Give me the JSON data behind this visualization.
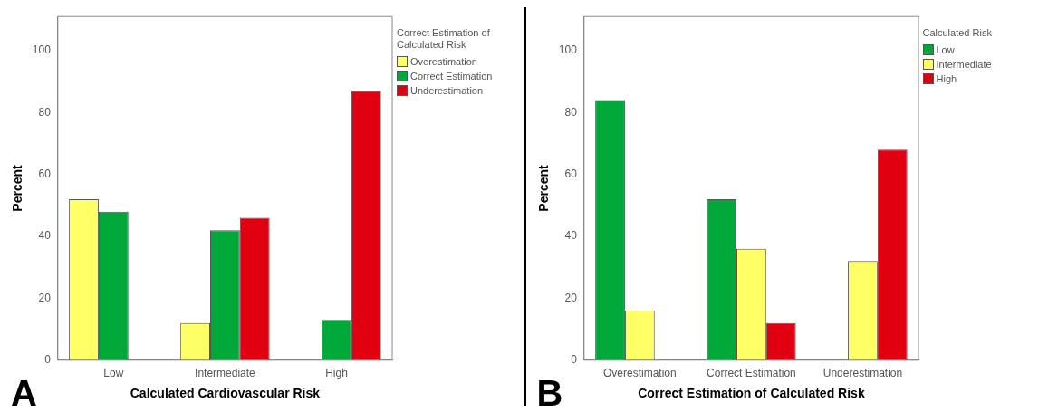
{
  "chart_data": [
    {
      "type": "bar",
      "xlabel": "Calculated Cardiovascular Risk",
      "ylabel": "Percent",
      "legend_title": "Correct Estimation of Calculated Risk",
      "annotations": [
        "A"
      ],
      "categories": [
        "Low",
        "Intermediate",
        "High"
      ],
      "series": [
        {
          "name": "Overestimation",
          "color": "#ffff66",
          "values": [
            52,
            12,
            null
          ]
        },
        {
          "name": "Correct Estimation",
          "color": "#00a83a",
          "values": [
            48,
            42,
            13
          ]
        },
        {
          "name": "Underestimation",
          "color": "#e0000f",
          "values": [
            null,
            46,
            87
          ]
        }
      ],
      "ylim": [
        0,
        111
      ],
      "yticks": [
        0,
        20,
        40,
        60,
        80,
        100
      ],
      "grid": false,
      "legend": "top right"
    },
    {
      "type": "bar",
      "xlabel": "Correct Estimation of Calculated Risk",
      "ylabel": "Percent",
      "legend_title": "Calculated Risk",
      "annotations": [
        "B"
      ],
      "categories": [
        "Overestimation",
        "Correct Estimation",
        "Underestimation"
      ],
      "series": [
        {
          "name": "Low",
          "color": "#00a83a",
          "values": [
            84,
            52,
            null
          ]
        },
        {
          "name": "Intermediate",
          "color": "#ffff66",
          "values": [
            16,
            36,
            32
          ]
        },
        {
          "name": "High",
          "color": "#e0000f",
          "values": [
            null,
            12,
            68
          ]
        }
      ],
      "ylim": [
        0,
        111
      ],
      "yticks": [
        0,
        20,
        40,
        60,
        80,
        100
      ],
      "grid": false,
      "legend": "top right"
    }
  ]
}
